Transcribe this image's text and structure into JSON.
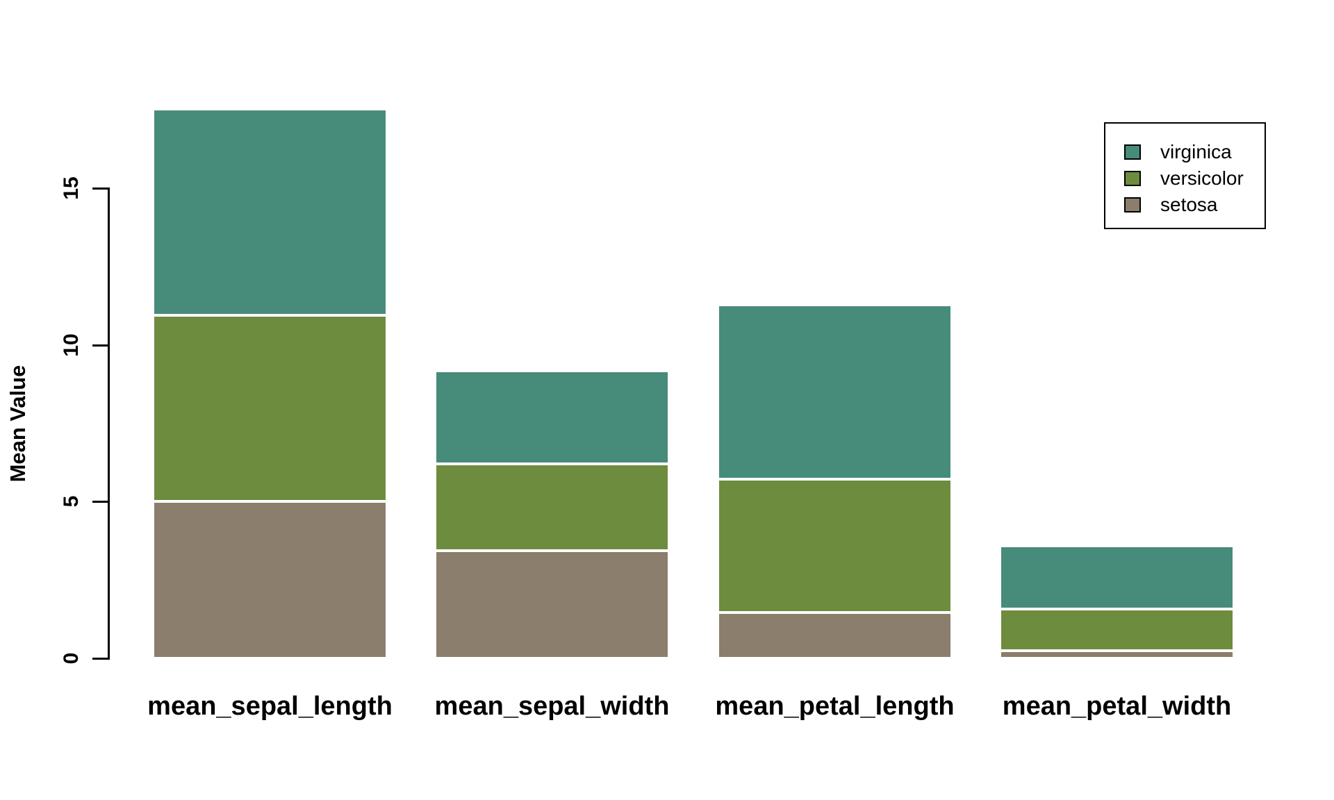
{
  "chart_data": {
    "type": "bar",
    "stacked": true,
    "title": "",
    "xlabel": "",
    "ylabel": "Mean Value",
    "categories": [
      "mean_sepal_length",
      "mean_sepal_width",
      "mean_petal_length",
      "mean_petal_width"
    ],
    "series": [
      {
        "name": "setosa",
        "color": "#8b7e6d",
        "values": [
          5.006,
          3.428,
          1.462,
          0.246
        ]
      },
      {
        "name": "versicolor",
        "color": "#6e8c3d",
        "values": [
          5.936,
          2.77,
          4.26,
          1.326
        ]
      },
      {
        "name": "virginica",
        "color": "#478b7b",
        "values": [
          6.588,
          2.974,
          5.552,
          2.026
        ]
      }
    ],
    "stack_totals": [
      17.53,
      9.172,
      11.274,
      3.598
    ],
    "y_axis": {
      "ticks": [
        0,
        5,
        10,
        15
      ],
      "tick_labels": [
        "0",
        "5",
        "10",
        "15"
      ],
      "range": [
        0,
        17.6
      ],
      "grid": false
    },
    "legend": {
      "position": "top-right",
      "entries": [
        "virginica",
        "versicolor",
        "setosa"
      ]
    },
    "axis_color": "#000000",
    "background_color": "#ffffff",
    "segment_separator_color": "#ffffff"
  }
}
